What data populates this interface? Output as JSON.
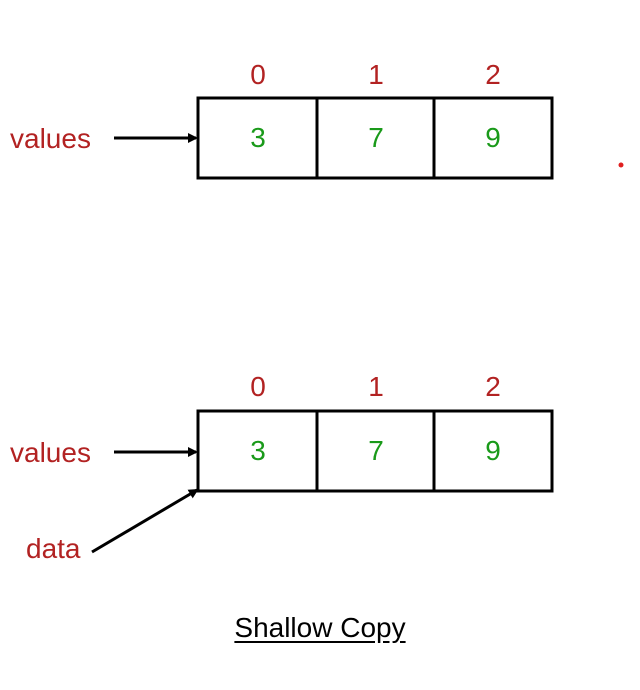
{
  "colors": {
    "index": "#b22222",
    "value": "#1a9a1a",
    "label": "#b22222",
    "stroke": "#000000",
    "dot": "#e02020"
  },
  "top_array": {
    "indices": [
      "0",
      "1",
      "2"
    ],
    "values": [
      "3",
      "7",
      "9"
    ],
    "pointer_label": "values"
  },
  "bottom_array": {
    "indices": [
      "0",
      "1",
      "2"
    ],
    "values": [
      "3",
      "7",
      "9"
    ],
    "pointer_label": "values",
    "second_pointer_label": "data"
  },
  "caption": "Shallow Copy"
}
